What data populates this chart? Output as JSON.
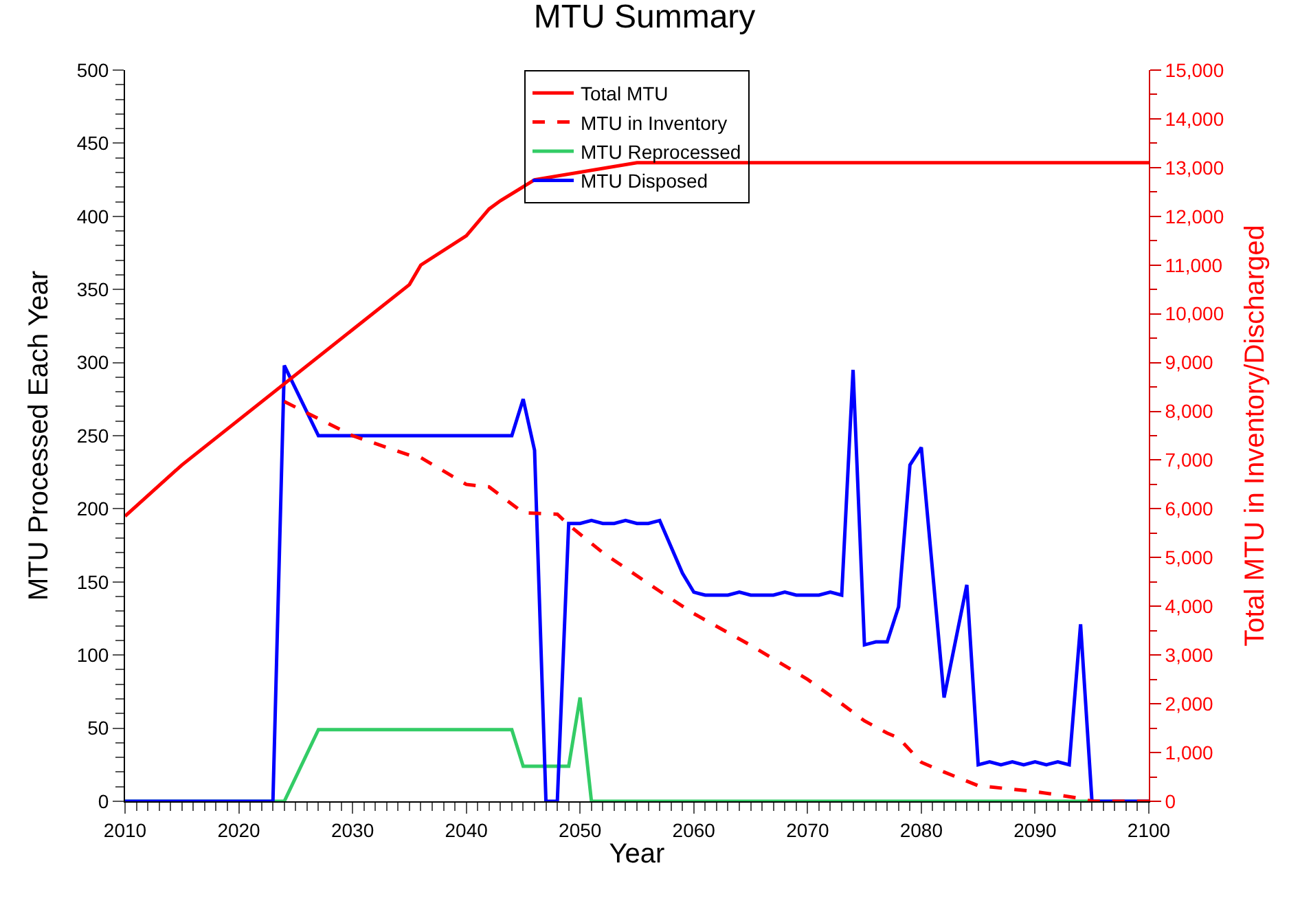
{
  "chart_data": {
    "type": "line",
    "title": "MTU Summary",
    "xlabel": "Year",
    "ylabel": "MTU Processed Each Year",
    "y2label": "Total MTU in Inventory/Discharged",
    "xlim": [
      2010,
      2100
    ],
    "xticks": [
      2010,
      2020,
      2030,
      2040,
      2050,
      2060,
      2070,
      2080,
      2090,
      2100
    ],
    "ylim": [
      0,
      500
    ],
    "yticks": [
      0,
      50,
      100,
      150,
      200,
      250,
      300,
      350,
      400,
      450,
      500
    ],
    "y2lim": [
      0,
      15000
    ],
    "y2ticks": [
      0,
      {
        "value": 1000,
        "label": "1,000"
      },
      {
        "value": 2000,
        "label": "2,000"
      },
      {
        "value": 3000,
        "label": "3,000"
      },
      {
        "value": 4000,
        "label": "4,000"
      },
      {
        "value": 5000,
        "label": "5,000"
      },
      {
        "value": 6000,
        "label": "6,000"
      },
      {
        "value": 7000,
        "label": "7,000"
      },
      {
        "value": 8000,
        "label": "8,000"
      },
      {
        "value": 9000,
        "label": "9,000"
      },
      {
        "value": 10000,
        "label": "10,000"
      },
      {
        "value": 11000,
        "label": "11,000"
      },
      {
        "value": 12000,
        "label": "12,000"
      },
      {
        "value": 13000,
        "label": "13,000"
      },
      {
        "value": 14000,
        "label": "14,000"
      },
      {
        "value": 15000,
        "label": "15,000"
      }
    ],
    "grid": false,
    "legend": "top",
    "marker": "none",
    "series": [
      {
        "name": "Total MTU",
        "color": "#ff0000",
        "axis": "y2",
        "line_style": "solid",
        "x": [
          2010,
          2015,
          2035,
          2036,
          2040,
          2042,
          2043,
          2046,
          2055,
          2100
        ],
        "values": [
          5850,
          6900,
          10600,
          11000,
          11600,
          12150,
          12320,
          12750,
          13100,
          13100
        ]
      },
      {
        "name": "MTU in Inventory",
        "color": "#ff0000",
        "axis": "y2",
        "line_style": "dashed",
        "x": [
          2024,
          2030,
          2035,
          2036,
          2040,
          2042,
          2045,
          2048,
          2049,
          2052,
          2057,
          2060,
          2065,
          2070,
          2073,
          2075,
          2077,
          2078,
          2080,
          2082,
          2085,
          2090,
          2094,
          2095,
          2100
        ],
        "values": [
          8200,
          7500,
          7100,
          7050,
          6500,
          6450,
          5920,
          5890,
          5670,
          5100,
          4310,
          3850,
          3200,
          2500,
          2000,
          1650,
          1400,
          1300,
          800,
          600,
          320,
          200,
          60,
          0,
          0
        ]
      },
      {
        "name": "MTU Reprocessed",
        "color": "#33cc66",
        "line_style": "solid",
        "x": [
          2010,
          2024,
          2027,
          2044,
          2045,
          2049,
          2050,
          2051,
          2100
        ],
        "values": [
          0,
          0,
          49,
          49,
          24,
          24,
          71,
          0,
          0
        ]
      },
      {
        "name": "MTU Disposed",
        "color": "#0000ff",
        "line_style": "solid",
        "x": [
          2010,
          2023,
          2024,
          2027,
          2044,
          2045,
          2046,
          2047,
          2048,
          2049,
          2050,
          2051,
          2052,
          2053,
          2054,
          2055,
          2056,
          2057,
          2059,
          2060,
          2061,
          2062,
          2063,
          2064,
          2065,
          2066,
          2067,
          2068,
          2069,
          2070,
          2071,
          2072,
          2073,
          2074,
          2075,
          2076,
          2077,
          2078,
          2079,
          2080,
          2082,
          2084,
          2085,
          2086,
          2087,
          2088,
          2089,
          2090,
          2091,
          2092,
          2093,
          2094,
          2095,
          2100
        ],
        "values": [
          0,
          0,
          298,
          250,
          250,
          275,
          240,
          0,
          0,
          190,
          190,
          192,
          190,
          190,
          192,
          190,
          190,
          192,
          156,
          143,
          141,
          141,
          141,
          143,
          141,
          141,
          141,
          143,
          141,
          141,
          141,
          143,
          141,
          295,
          107,
          109,
          109,
          133,
          230,
          242,
          71,
          148,
          25,
          27,
          25,
          27,
          25,
          27,
          25,
          27,
          25,
          121,
          0,
          0
        ]
      }
    ]
  }
}
